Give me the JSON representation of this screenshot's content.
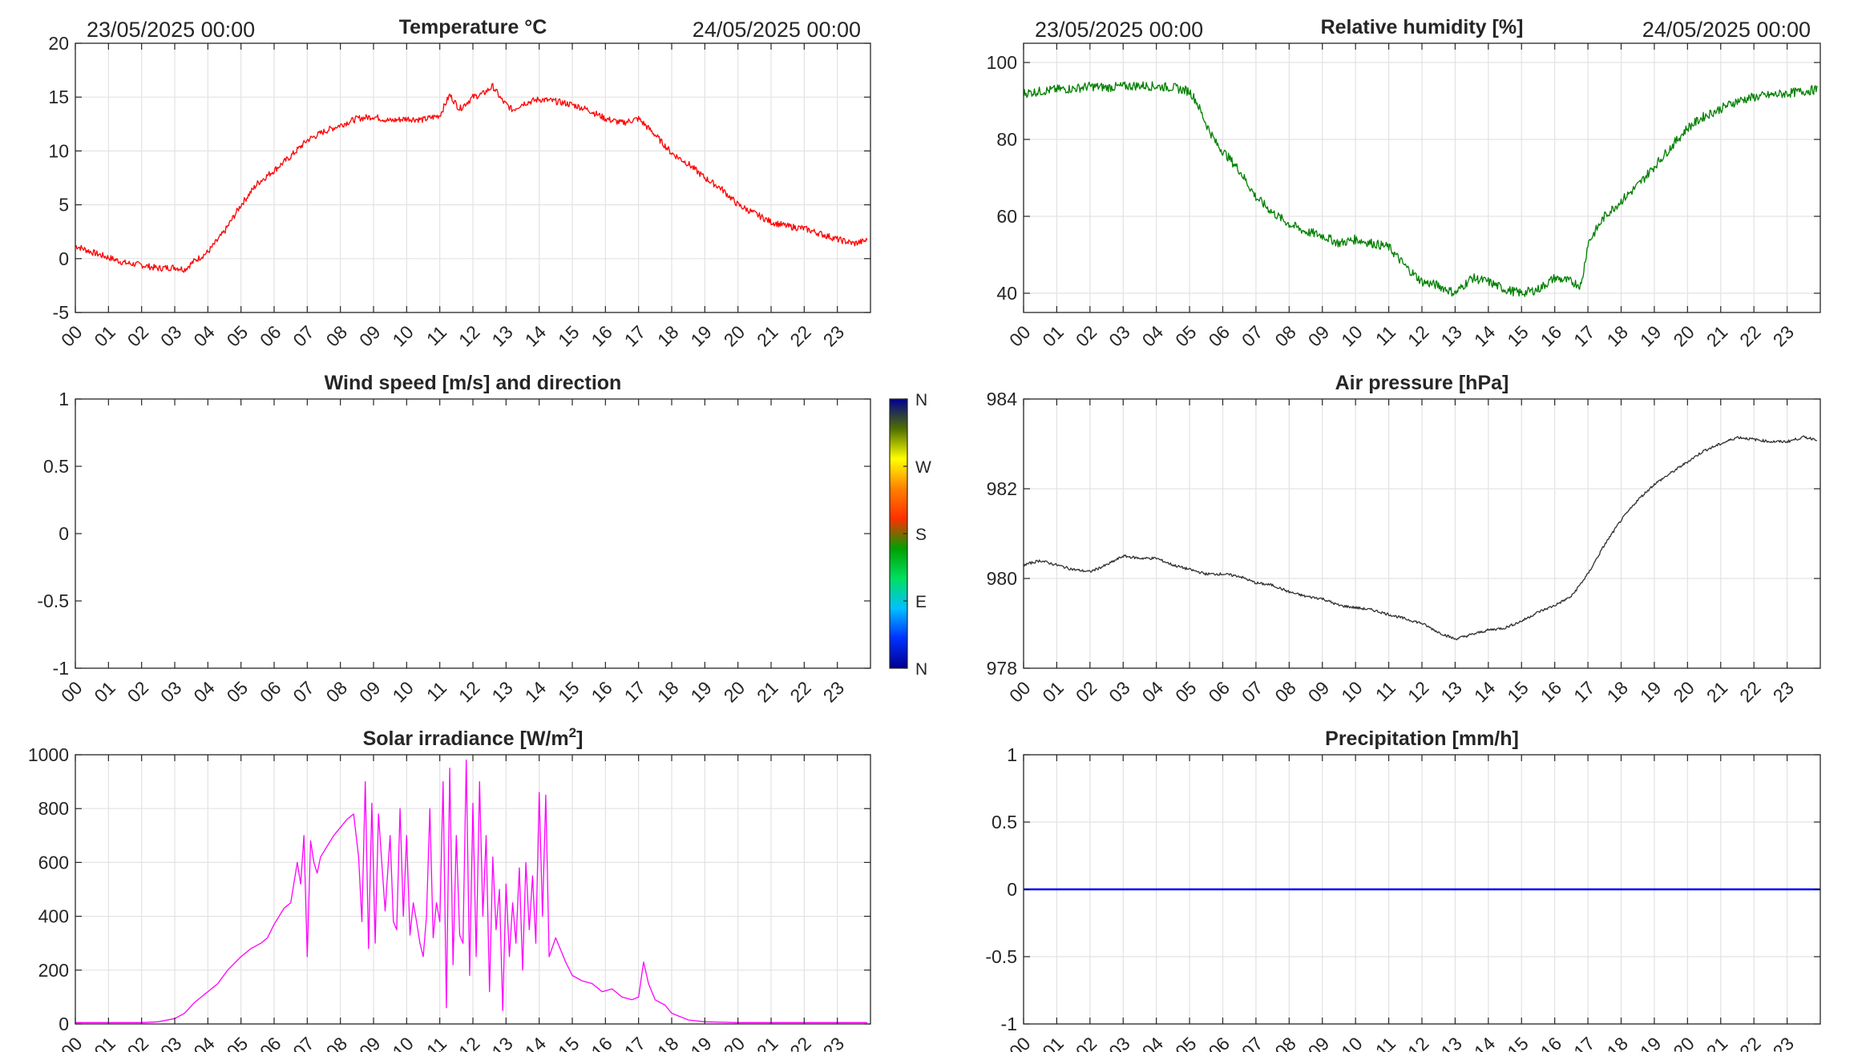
{
  "chart_data": [
    {
      "id": "temperature",
      "type": "line",
      "title": "Temperature °C",
      "date_left": "23/05/2025 00:00",
      "date_right": "24/05/2025 00:00",
      "ylim": [
        -5,
        20
      ],
      "yticks": [
        "20",
        "15",
        "10",
        "5",
        "0",
        "-5"
      ],
      "xticks": [
        "00",
        "01",
        "02",
        "03",
        "04",
        "05",
        "06",
        "07",
        "08",
        "09",
        "10",
        "11",
        "12",
        "13",
        "14",
        "15",
        "16",
        "17",
        "18",
        "19",
        "20",
        "21",
        "22",
        "23"
      ],
      "grid": true,
      "series": [
        {
          "color": "#ff0000",
          "x": [
            0,
            0.5,
            1,
            1.5,
            2,
            2.5,
            3,
            3.3,
            3.6,
            4,
            4.5,
            5,
            5.5,
            6,
            6.5,
            7,
            7.5,
            8,
            8.5,
            9,
            9.5,
            10,
            10.5,
            11,
            11.3,
            11.6,
            12,
            12.3,
            12.6,
            12.9,
            13.2,
            13.5,
            14,
            14.5,
            15,
            15.5,
            16,
            16.5,
            17,
            17.5,
            18,
            18.5,
            19,
            19.5,
            20,
            20.5,
            21,
            21.5,
            22,
            22.5,
            23,
            23.5,
            23.9
          ],
          "y": [
            1.2,
            0.6,
            0.1,
            -0.4,
            -0.6,
            -0.9,
            -0.8,
            -1.0,
            -0.2,
            0.6,
            2.5,
            5,
            7,
            8.2,
            9.5,
            11,
            11.8,
            12.4,
            13,
            13.2,
            12.8,
            13,
            12.9,
            13.3,
            15.2,
            13.9,
            15,
            15.3,
            16,
            14.6,
            13.8,
            14.4,
            14.8,
            14.6,
            14.3,
            13.8,
            13,
            12.6,
            13,
            11.5,
            9.8,
            8.8,
            7.5,
            6.5,
            5,
            4.2,
            3.4,
            3,
            2.8,
            2.3,
            1.8,
            1.4,
            1.7
          ],
          "noise": 0.3
        }
      ]
    },
    {
      "id": "humidity",
      "type": "line",
      "title": "Relative humidity [%]",
      "date_left": "23/05/2025 00:00",
      "date_right": "24/05/2025 00:00",
      "ylim": [
        35,
        105
      ],
      "yticks": [
        "100",
        "80",
        "60",
        "40"
      ],
      "ytick_values": [
        100,
        80,
        60,
        40
      ],
      "xticks": [
        "00",
        "01",
        "02",
        "03",
        "04",
        "05",
        "06",
        "07",
        "08",
        "09",
        "10",
        "11",
        "12",
        "13",
        "14",
        "15",
        "16",
        "17",
        "18",
        "19",
        "20",
        "21",
        "22",
        "23"
      ],
      "grid": true,
      "series": [
        {
          "color": "#007f00",
          "x": [
            0,
            0.5,
            1,
            1.5,
            2,
            2.5,
            3,
            3.5,
            4,
            4.5,
            5,
            5.2,
            5.5,
            5.8,
            6,
            6.5,
            7,
            7.5,
            8,
            8.5,
            9,
            9.5,
            10,
            10.5,
            11,
            11.5,
            12,
            12.5,
            13,
            13.5,
            14,
            14.5,
            15,
            15.5,
            16,
            16.5,
            16.8,
            17,
            17.5,
            18,
            18.5,
            19,
            19.5,
            20,
            20.5,
            21,
            21.5,
            22,
            22.5,
            23,
            23.5,
            23.9
          ],
          "y": [
            92,
            92.5,
            93,
            93.2,
            93.8,
            93.5,
            93.8,
            94,
            93.8,
            93.5,
            92.5,
            90,
            84,
            79,
            77,
            72,
            65,
            61,
            58,
            56,
            55,
            53,
            54,
            53,
            52,
            47,
            43,
            42,
            40,
            44,
            43,
            41,
            40,
            41,
            44,
            43,
            42,
            53,
            60,
            64,
            68,
            73,
            78,
            83,
            86,
            88,
            90,
            91,
            91.5,
            92,
            92.5,
            93
          ],
          "noise": 1.2
        }
      ]
    },
    {
      "id": "wind",
      "type": "scatter",
      "title": "Wind speed [m/s] and direction",
      "ylim": [
        -1,
        1
      ],
      "yticks": [
        "1",
        "0.5",
        "0",
        "-0.5",
        "-1"
      ],
      "xticks": [
        "00",
        "01",
        "02",
        "03",
        "04",
        "05",
        "06",
        "07",
        "08",
        "09",
        "10",
        "11",
        "12",
        "13",
        "14",
        "15",
        "16",
        "17",
        "18",
        "19",
        "20",
        "21",
        "22",
        "23"
      ],
      "grid": false,
      "series": [],
      "colorbar": {
        "labels": [
          "N",
          "W",
          "S",
          "E",
          "N"
        ],
        "colors": [
          "#000090",
          "#0030ff",
          "#00c0ff",
          "#00e060",
          "#00a000",
          "#ff3000",
          "#ff8000",
          "#ffff00",
          "#507000",
          "#000090"
        ]
      }
    },
    {
      "id": "pressure",
      "type": "line",
      "title": "Air pressure [hPa]",
      "ylim": [
        978,
        984
      ],
      "yticks": [
        "984",
        "982",
        "980",
        "978"
      ],
      "xticks": [
        "00",
        "01",
        "02",
        "03",
        "04",
        "05",
        "06",
        "07",
        "08",
        "09",
        "10",
        "11",
        "12",
        "13",
        "14",
        "15",
        "16",
        "17",
        "18",
        "19",
        "20",
        "21",
        "22",
        "23"
      ],
      "grid": true,
      "series": [
        {
          "color": "#303030",
          "x": [
            0,
            0.5,
            1,
            1.5,
            2,
            2.5,
            3,
            3.5,
            4,
            4.5,
            5,
            5.5,
            6,
            6.5,
            7,
            7.5,
            8,
            8.5,
            9,
            9.5,
            10,
            10.5,
            11,
            11.5,
            12,
            12.5,
            13,
            13.5,
            14,
            14.5,
            15,
            15.5,
            16,
            16.5,
            17,
            17.5,
            18,
            18.5,
            19,
            19.5,
            20,
            20.5,
            21,
            21.5,
            22,
            22.5,
            23,
            23.5,
            23.9
          ],
          "y": [
            980.3,
            980.4,
            980.3,
            980.2,
            980.15,
            980.3,
            980.5,
            980.45,
            980.45,
            980.3,
            980.2,
            980.1,
            980.1,
            980.05,
            979.9,
            979.85,
            979.7,
            979.6,
            979.55,
            979.4,
            979.35,
            979.3,
            979.2,
            979.1,
            979,
            978.8,
            978.65,
            978.75,
            978.85,
            978.9,
            979.05,
            979.25,
            979.4,
            979.6,
            980.1,
            980.75,
            981.3,
            981.75,
            982.1,
            982.35,
            982.6,
            982.85,
            983,
            983.15,
            983.1,
            983.05,
            983.05,
            983.15,
            983.1
          ],
          "noise": 0.03
        }
      ]
    },
    {
      "id": "solar",
      "type": "line",
      "title": "Solar irradiance [W/m",
      "title_sup": "2",
      "title_end": "]",
      "ylim": [
        0,
        1000
      ],
      "yticks": [
        "1000",
        "800",
        "600",
        "400",
        "200",
        "0"
      ],
      "xticks": [
        "00",
        "01",
        "02",
        "03",
        "04",
        "05",
        "06",
        "07",
        "08",
        "09",
        "10",
        "11",
        "12",
        "13",
        "14",
        "15",
        "16",
        "17",
        "18",
        "19",
        "20",
        "21",
        "22",
        "23"
      ],
      "grid": true,
      "series": [
        {
          "color": "#ff00ff",
          "x": [
            0,
            1,
            2,
            2.5,
            3,
            3.3,
            3.6,
            4,
            4.3,
            4.6,
            5,
            5.3,
            5.6,
            5.8,
            6,
            6.3,
            6.5,
            6.7,
            6.8,
            6.9,
            7.0,
            7.1,
            7.2,
            7.3,
            7.4,
            7.6,
            7.8,
            8,
            8.2,
            8.4,
            8.55,
            8.65,
            8.75,
            8.85,
            8.95,
            9.05,
            9.15,
            9.25,
            9.35,
            9.5,
            9.6,
            9.7,
            9.8,
            9.9,
            10,
            10.1,
            10.2,
            10.3,
            10.4,
            10.5,
            10.6,
            10.7,
            10.8,
            10.9,
            11,
            11.1,
            11.2,
            11.3,
            11.4,
            11.5,
            11.6,
            11.7,
            11.8,
            11.9,
            12,
            12.1,
            12.2,
            12.3,
            12.4,
            12.5,
            12.6,
            12.7,
            12.8,
            12.9,
            13,
            13.1,
            13.2,
            13.3,
            13.4,
            13.5,
            13.6,
            13.7,
            13.8,
            13.9,
            14,
            14.1,
            14.2,
            14.3,
            14.5,
            14.8,
            15,
            15.3,
            15.6,
            15.9,
            16.2,
            16.5,
            16.8,
            17,
            17.15,
            17.3,
            17.5,
            17.8,
            18,
            18.5,
            19,
            20,
            21,
            22,
            23,
            23.9
          ],
          "y": [
            5,
            5,
            5,
            8,
            20,
            40,
            80,
            120,
            150,
            200,
            250,
            280,
            300,
            320,
            370,
            430,
            450,
            600,
            520,
            700,
            250,
            680,
            600,
            560,
            620,
            660,
            700,
            730,
            760,
            780,
            620,
            380,
            900,
            280,
            820,
            300,
            780,
            600,
            420,
            700,
            380,
            350,
            800,
            400,
            700,
            330,
            450,
            380,
            300,
            250,
            400,
            800,
            320,
            450,
            380,
            900,
            60,
            950,
            220,
            700,
            330,
            300,
            980,
            180,
            820,
            250,
            900,
            400,
            700,
            120,
            620,
            350,
            500,
            50,
            520,
            250,
            450,
            300,
            580,
            200,
            600,
            350,
            550,
            300,
            860,
            400,
            850,
            250,
            320,
            230,
            180,
            160,
            150,
            120,
            130,
            100,
            90,
            100,
            230,
            150,
            90,
            70,
            40,
            15,
            8,
            5,
            5,
            5,
            5,
            5
          ],
          "noise": 0
        }
      ]
    },
    {
      "id": "precipitation",
      "type": "line",
      "title": "Precipitation [mm/h]",
      "ylim": [
        -1,
        1
      ],
      "yticks": [
        "1",
        "0.5",
        "0",
        "-0.5",
        "-1"
      ],
      "xticks": [
        "00",
        "01",
        "02",
        "03",
        "04",
        "05",
        "06",
        "07",
        "08",
        "09",
        "10",
        "11",
        "12",
        "13",
        "14",
        "15",
        "16",
        "17",
        "18",
        "19",
        "20",
        "21",
        "22",
        "23"
      ],
      "grid": true,
      "series": [
        {
          "color": "#0000ff",
          "x": [
            0,
            24
          ],
          "y": [
            0,
            0
          ],
          "noise": 0
        }
      ]
    }
  ]
}
